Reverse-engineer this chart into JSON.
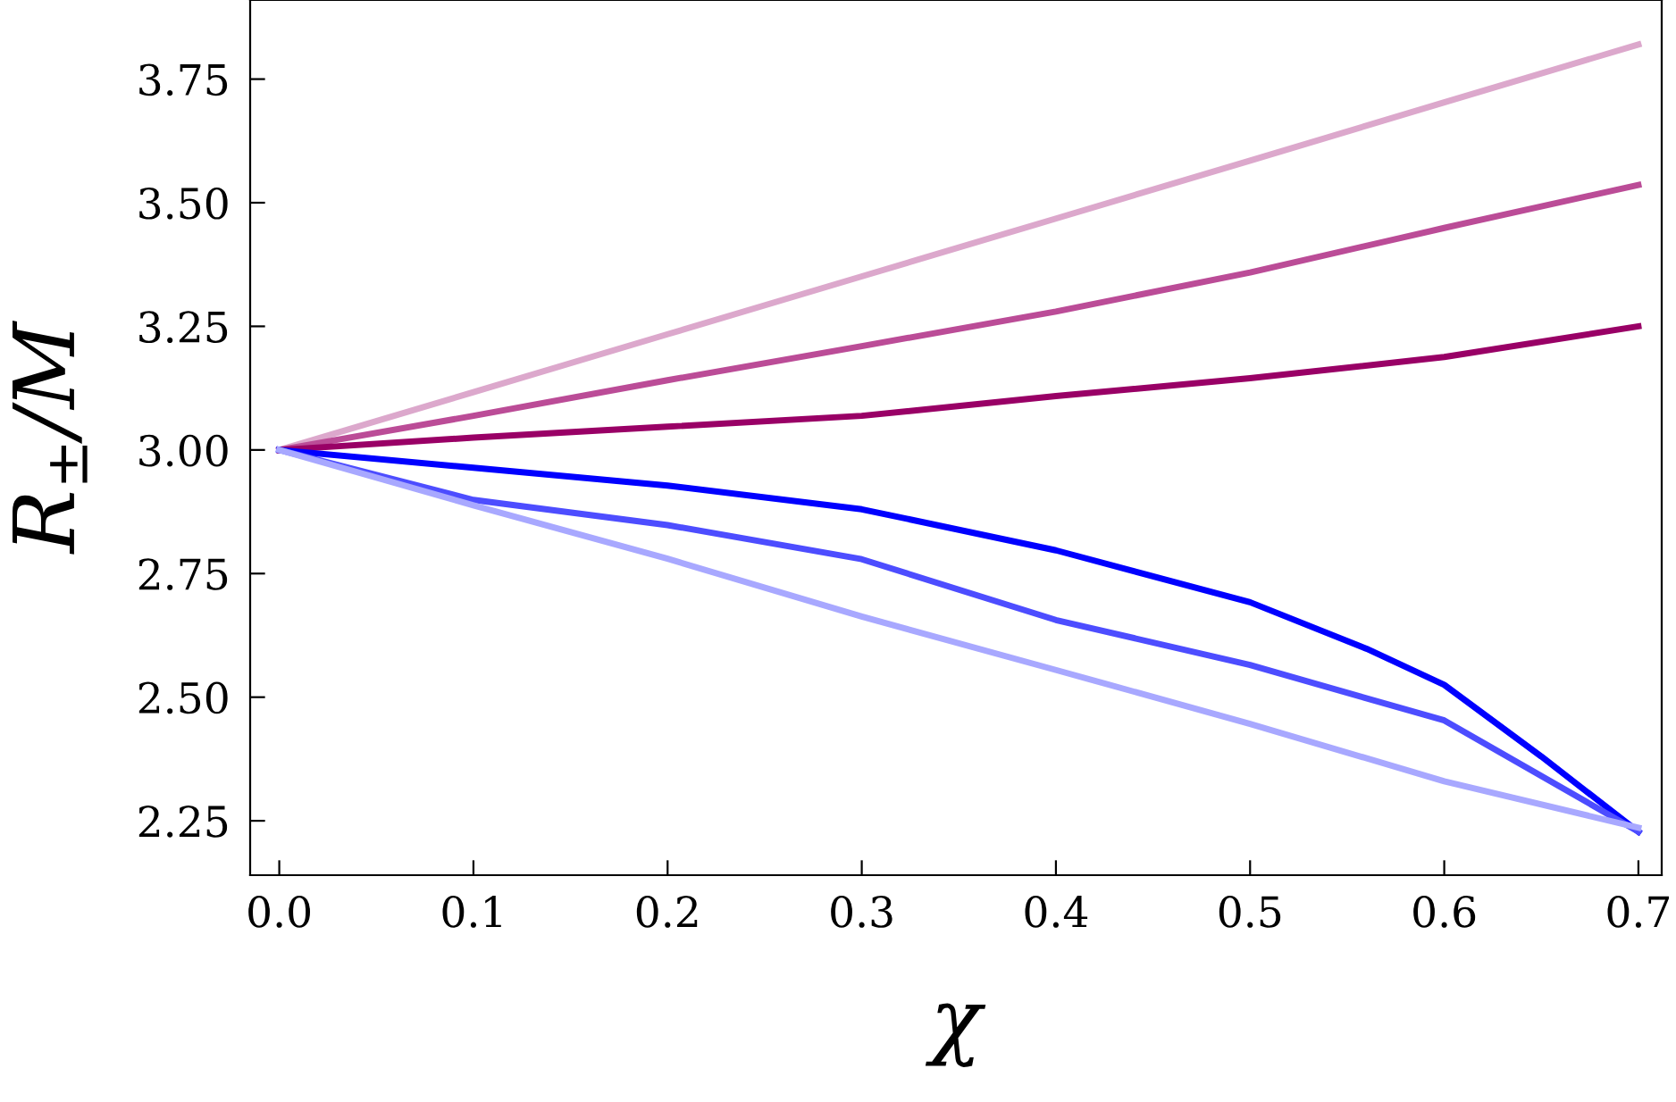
{
  "chart_data": {
    "type": "line",
    "xlabel": "χ",
    "ylabel": "R$_{±}$/M",
    "x": [
      0,
      0.1,
      0.2,
      0.3,
      0.4,
      0.5,
      0.56,
      0.6,
      0.65,
      0.7
    ],
    "series": [
      {
        "color": "#dca8cc",
        "values": [
          3.0,
          3.117,
          3.234,
          3.351,
          3.468,
          3.585,
          null,
          3.703,
          null,
          3.82
        ]
      },
      {
        "color": "#bb4c97",
        "values": [
          3.0,
          3.069,
          3.141,
          3.21,
          3.28,
          3.359,
          null,
          3.449,
          null,
          3.536
        ]
      },
      {
        "color": "#990066",
        "values": [
          3.0,
          3.025,
          3.047,
          3.069,
          3.109,
          3.145,
          null,
          3.188,
          null,
          3.25
        ]
      },
      {
        "color": "#0000ff",
        "values": [
          3.0,
          2.964,
          2.928,
          2.88,
          2.797,
          2.692,
          2.598,
          2.525,
          2.38,
          2.228
        ]
      },
      {
        "color": "#4d4dff",
        "values": [
          3.0,
          2.899,
          2.848,
          2.779,
          2.656,
          2.565,
          null,
          2.453,
          null,
          2.228
        ]
      },
      {
        "color": "#a8a8ff",
        "values": [
          3.0,
          2.888,
          2.78,
          2.663,
          2.555,
          2.446,
          null,
          2.33,
          null,
          2.236
        ]
      }
    ],
    "xlim": [
      -0.015,
      0.712
    ],
    "ylim": [
      2.14,
      3.91
    ],
    "xticks": [
      {
        "value": 0,
        "label": "0.0"
      },
      0.1,
      0.2,
      0.3,
      0.4,
      0.5,
      0.6,
      0.7
    ],
    "yticks": [
      {
        "value": 2.25,
        "label": "2.25"
      },
      {
        "value": 2.5,
        "label": "2.50"
      },
      {
        "value": 2.75,
        "label": "2.75"
      },
      {
        "value": 3.0,
        "label": "3.00"
      },
      {
        "value": 3.25,
        "label": "3.25"
      },
      {
        "value": 3.5,
        "label": "3.50"
      },
      {
        "value": 3.75,
        "label": "3.75"
      }
    ],
    "grid": false,
    "legend": false,
    "marker": "none",
    "line_style": "solid"
  }
}
